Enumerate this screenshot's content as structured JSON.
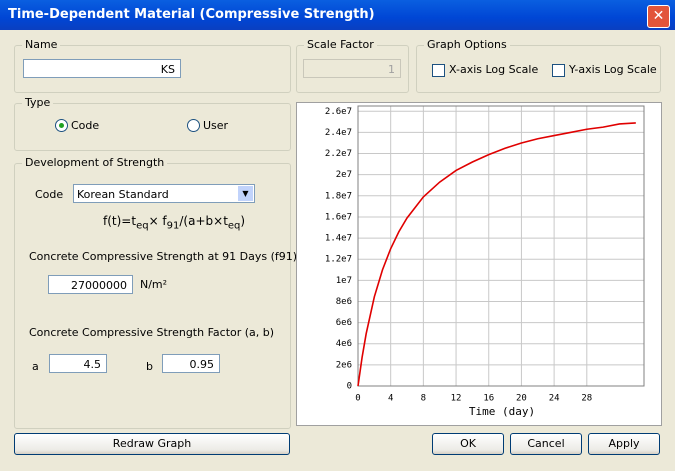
{
  "window": {
    "title": "Time-Dependent Material (Compressive Strength)"
  },
  "name_group": {
    "label": "Name",
    "value": "KS"
  },
  "scale_factor": {
    "label": "Scale Factor",
    "value": "1"
  },
  "graph_options": {
    "label": "Graph Options",
    "x_log": "X-axis Log Scale",
    "y_log": "Y-axis Log Scale"
  },
  "type_group": {
    "label": "Type",
    "options": [
      "Code",
      "User"
    ]
  },
  "development": {
    "label": "Development of Strength",
    "code_label": "Code",
    "code_value": "Korean Standard",
    "formula": [
      "f(t)=t",
      "eq",
      "× f",
      "91",
      "/(a+b×t",
      "eq",
      ")"
    ],
    "f91_label": "Concrete Compressive Strength at 91 Days (f91)",
    "f91_value": "27000000",
    "f91_unit": "N/m²",
    "factor_label": "Concrete Compressive Strength Factor (a, b)",
    "a_label": "a",
    "a_value": "4.5",
    "b_label": "b",
    "b_value": "0.95"
  },
  "buttons": [
    "Redraw Graph",
    "OK",
    "Cancel",
    "Apply"
  ],
  "chart_data": {
    "type": "line",
    "x_label": "Time (day)",
    "x": [
      0,
      0.5,
      1,
      2,
      3,
      4,
      5,
      6,
      8,
      10,
      12,
      14,
      16,
      18,
      20,
      22,
      24,
      26,
      28,
      30,
      32,
      34
    ],
    "series": [
      {
        "color": "#e00000",
        "values": [
          0,
          2710000,
          4950000,
          8440000,
          11000000,
          13000000,
          14600000,
          15900000,
          17900000,
          19300000,
          20400000,
          21200000,
          21900000,
          22500000,
          23000000,
          23400000,
          23700000,
          24000000,
          24300000,
          24500000,
          24800000,
          24900000
        ]
      }
    ],
    "xlim": [
      0,
      35
    ],
    "xticks": [
      0,
      4,
      8,
      12,
      16,
      20,
      24,
      28
    ],
    "ylim": [
      0,
      26500000
    ],
    "yticks": [
      0,
      {
        "value": 2000000,
        "label": "2e6"
      },
      {
        "value": 4000000,
        "label": "4e6"
      },
      {
        "value": 6000000,
        "label": "6e6"
      },
      {
        "value": 8000000,
        "label": "8e6"
      },
      {
        "value": 10000000,
        "label": "1e7"
      },
      {
        "value": 12000000,
        "label": "1.2e7"
      },
      {
        "value": 14000000,
        "label": "1.4e7"
      },
      {
        "value": 16000000,
        "label": "1.6e7"
      },
      {
        "value": 18000000,
        "label": "1.8e7"
      },
      {
        "value": 20000000,
        "label": "2e7"
      },
      {
        "value": 22000000,
        "label": "2.2e7"
      },
      {
        "value": 24000000,
        "label": "2.4e7"
      },
      {
        "value": 26000000,
        "label": "2.6e7"
      }
    ],
    "grid": true
  }
}
